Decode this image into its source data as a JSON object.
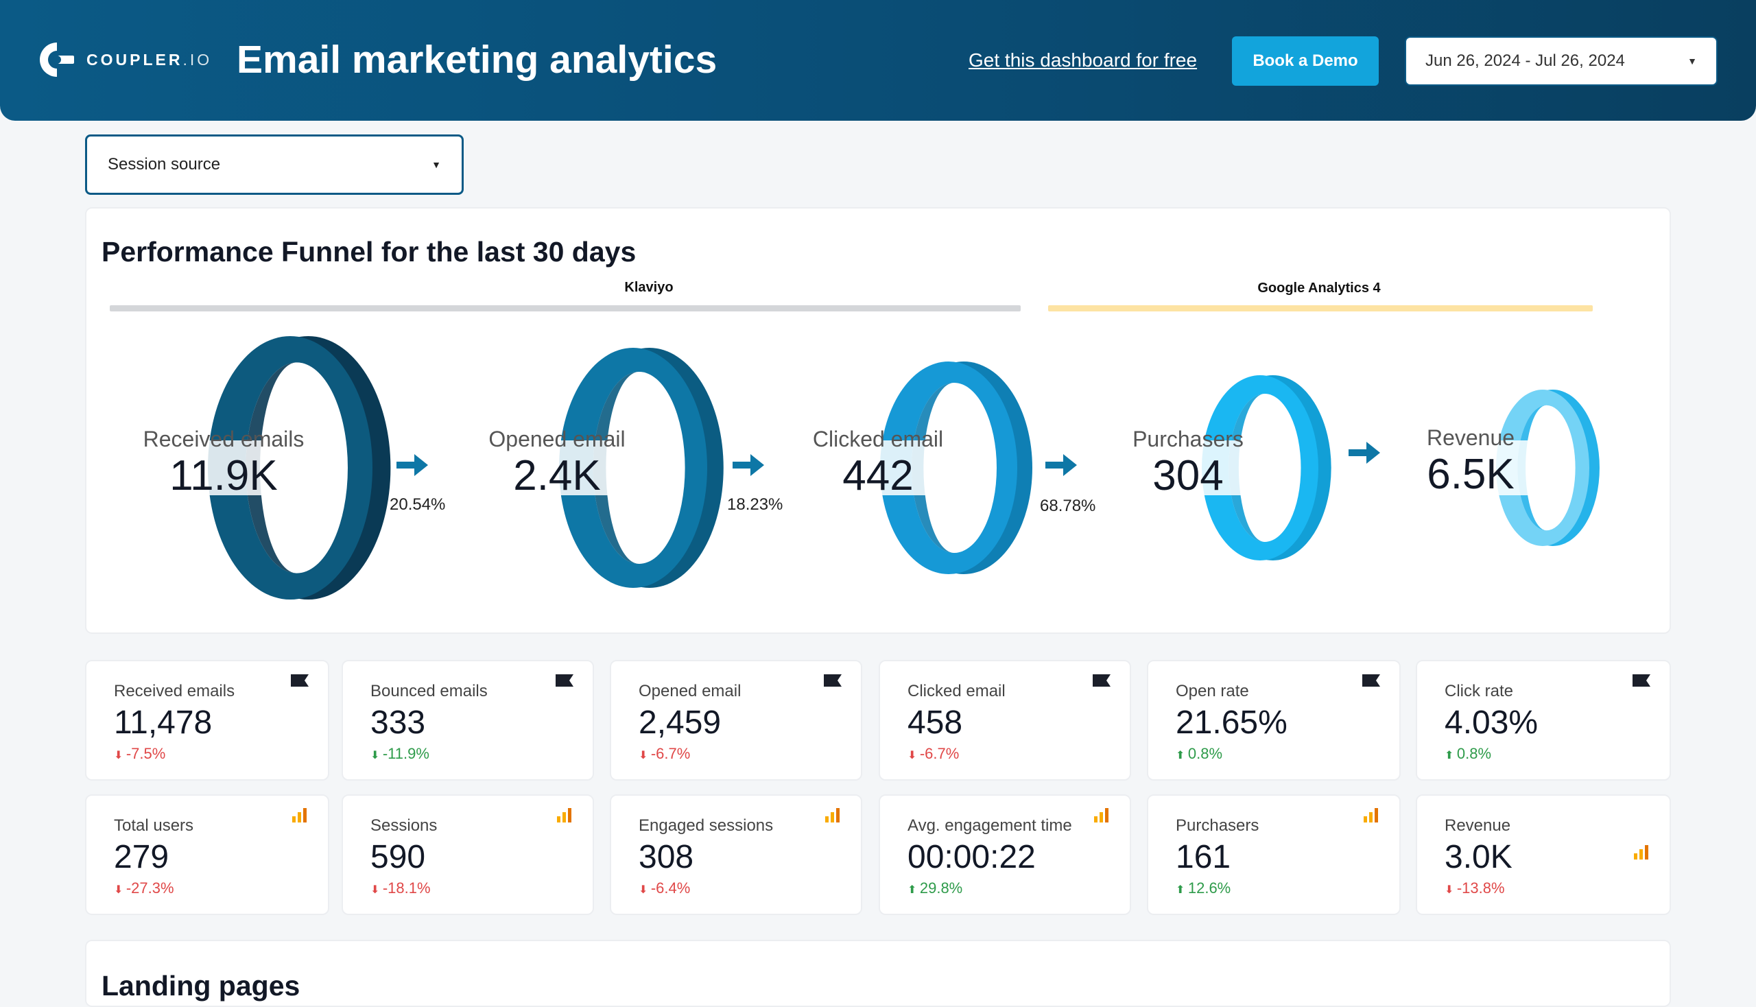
{
  "header": {
    "logo_text": "COUPLER",
    "logo_suffix": ".IO",
    "title": "Email marketing analytics",
    "free_link": "Get this dashboard for free",
    "demo_button": "Book a Demo",
    "date_range": "Jun 26, 2024 - Jul 26, 2024"
  },
  "filters": {
    "session_source": "Session source"
  },
  "funnel": {
    "title": "Performance Funnel for the last 30 days",
    "sources": [
      {
        "label": "Klaviyo",
        "color": "#d4d6d9"
      },
      {
        "label": "Google Analytics 4",
        "color": "#fde3a3"
      }
    ],
    "steps": [
      {
        "label": "Received emails",
        "value": "11.9K",
        "color": "#0d5a7e",
        "dark": "#0a3a55"
      },
      {
        "label": "Opened email",
        "value": "2.4K",
        "color": "#0e77a6",
        "dark": "#0b5c82"
      },
      {
        "label": "Clicked email",
        "value": "442",
        "color": "#1699d6",
        "dark": "#0f7fb4"
      },
      {
        "label": "Purchasers",
        "value": "304",
        "color": "#1ab7f2",
        "dark": "#129fd6"
      },
      {
        "label": "Revenue",
        "value": "6.5K",
        "color": "#74d3f6",
        "dark": "#25b3ea"
      }
    ],
    "conversions": [
      "20.54%",
      "18.23%",
      "68.78%"
    ]
  },
  "kpis_email": [
    {
      "label": "Received emails",
      "value": "11,478",
      "delta": "-7.5%",
      "dir": "down",
      "icon": "flag-icon"
    },
    {
      "label": "Bounced emails",
      "value": "333",
      "delta": "-11.9%",
      "dir": "down-good",
      "icon": "flag-icon"
    },
    {
      "label": "Opened email",
      "value": "2,459",
      "delta": "-6.7%",
      "dir": "down",
      "icon": "flag-icon"
    },
    {
      "label": "Clicked email",
      "value": "458",
      "delta": "-6.7%",
      "dir": "down",
      "icon": "flag-icon"
    },
    {
      "label": "Open rate",
      "value": "21.65%",
      "delta": "0.8%",
      "dir": "up",
      "icon": "flag-icon"
    },
    {
      "label": "Click rate",
      "value": "4.03%",
      "delta": "0.8%",
      "dir": "up",
      "icon": "flag-icon"
    }
  ],
  "kpis_ga": [
    {
      "label": "Total users",
      "value": "279",
      "delta": "-27.3%",
      "dir": "down",
      "icon": "analytics-bars-icon"
    },
    {
      "label": "Sessions",
      "value": "590",
      "delta": "-18.1%",
      "dir": "down",
      "icon": "analytics-bars-icon"
    },
    {
      "label": "Engaged sessions",
      "value": "308",
      "delta": "-6.4%",
      "dir": "down",
      "icon": "analytics-bars-icon"
    },
    {
      "label": "Avg. engagement time",
      "value": "00:00:22",
      "delta": "29.8%",
      "dir": "up",
      "icon": "analytics-bars-icon"
    },
    {
      "label": "Purchasers",
      "value": "161",
      "delta": "12.6%",
      "dir": "up",
      "icon": "analytics-bars-icon"
    },
    {
      "label": "Revenue",
      "value": "3.0K",
      "delta": "-13.8%",
      "dir": "down",
      "icon": "analytics-bars-icon"
    }
  ],
  "landing": {
    "title": "Landing pages"
  }
}
